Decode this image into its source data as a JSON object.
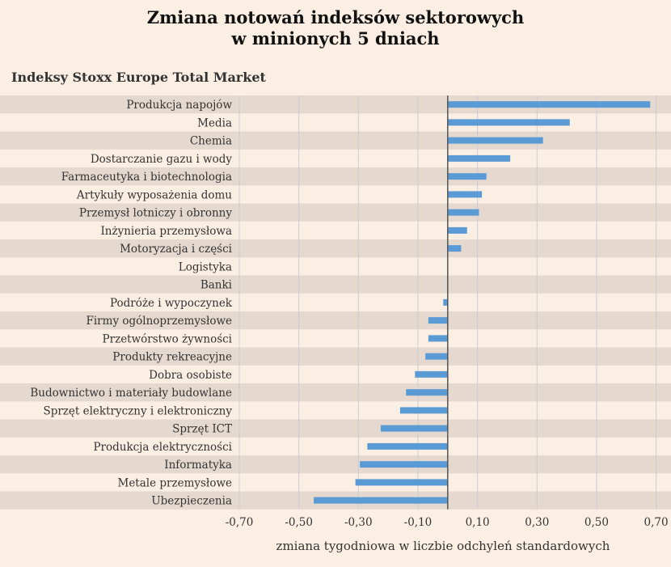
{
  "chart_data": {
    "type": "bar",
    "orientation": "horizontal",
    "title": "Zmiana notowań indeksów sektorowych\nw minionych 5 dniach",
    "subtitle": "Indeksy Stoxx Europe Total Market",
    "xlabel": "zmiana tygodniowa w liczbie odchyleń standardowych",
    "ylabel": "",
    "xlim": [
      -0.7,
      0.75
    ],
    "xticks": [
      "-0,70",
      "-0,50",
      "-0,30",
      "-0,10",
      "0,10",
      "0,30",
      "0,50",
      "0,70"
    ],
    "xtick_values": [
      -0.7,
      -0.5,
      -0.3,
      -0.1,
      0.1,
      0.3,
      0.5,
      0.7
    ],
    "grid": true,
    "bar_color": "#5b9bd5",
    "band_color": "#e5d8cf",
    "categories": [
      "Produkcja napojów",
      "Media",
      "Chemia",
      "Dostarczanie gazu i wody",
      "Farmaceutyka i biotechnologia",
      "Artykuły wyposażenia domu",
      "Przemysł lotniczy i obronny",
      "Inżynieria przemysłowa",
      "Motoryzacja i części",
      "Logistyka",
      "Banki",
      "Podróże i wypoczynek",
      "Firmy ogólnoprzemysłowe",
      "Przetwórstwo żywności",
      "Produkty rekreacyjne",
      "Dobra osobiste",
      "Budownictwo i materiały budowlane",
      "Sprzęt elektryczny i elektroniczny",
      "Sprzęt ICT",
      "Produkcja elektryczności",
      "Informatyka",
      "Metale przemysłowe",
      "Ubezpieczenia"
    ],
    "values": [
      0.68,
      0.41,
      0.32,
      0.21,
      0.13,
      0.115,
      0.105,
      0.065,
      0.045,
      0.0,
      0.0,
      -0.015,
      -0.065,
      -0.065,
      -0.075,
      -0.11,
      -0.14,
      -0.16,
      -0.225,
      -0.27,
      -0.295,
      -0.31,
      -0.45
    ]
  }
}
